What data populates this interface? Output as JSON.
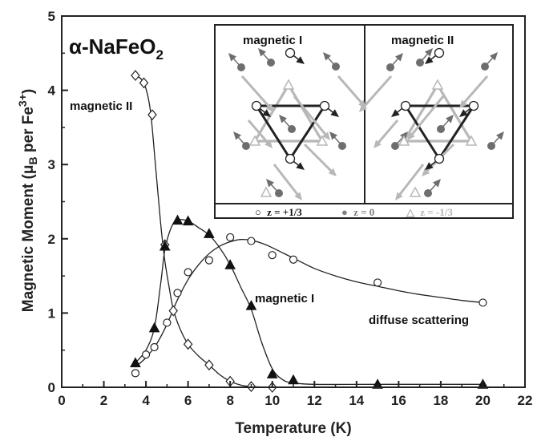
{
  "chart_data": {
    "type": "scatter",
    "title_parts": {
      "prefix": "α-NaFeO",
      "subscript": "2"
    },
    "xlabel": "Temperature (K)",
    "ylabel_parts": {
      "main": "Magnetic Moment (μ",
      "sub": "B",
      "mid": " per Fe",
      "sup": "3+",
      "end": ")"
    },
    "xlim": [
      0,
      22
    ],
    "ylim": [
      0,
      5
    ],
    "x_ticks": [
      "0",
      "2",
      "4",
      "6",
      "8",
      "10",
      "12",
      "14",
      "16",
      "18",
      "20",
      "22"
    ],
    "y_ticks": [
      "0",
      "1",
      "2",
      "3",
      "4",
      "5"
    ],
    "grid": false,
    "series": [
      {
        "name": "magnetic II",
        "marker": "diamond",
        "x": [
          3.5,
          3.9,
          4.3,
          4.9,
          5.3,
          6.0,
          7.0,
          8.0,
          9.0,
          10.0
        ],
        "y": [
          4.2,
          4.1,
          3.67,
          1.92,
          1.03,
          0.58,
          0.3,
          0.08,
          0.01,
          0.0
        ],
        "curve": [
          [
            3.5,
            4.2
          ],
          [
            3.9,
            4.1
          ],
          [
            4.2,
            3.75
          ],
          [
            4.45,
            3.0
          ],
          [
            4.7,
            2.2
          ],
          [
            4.9,
            1.7
          ],
          [
            5.1,
            1.35
          ],
          [
            5.3,
            1.05
          ],
          [
            5.6,
            0.8
          ],
          [
            6.0,
            0.58
          ],
          [
            6.5,
            0.42
          ],
          [
            7.0,
            0.3
          ],
          [
            7.5,
            0.17
          ],
          [
            8.0,
            0.08
          ],
          [
            8.5,
            0.03
          ],
          [
            9.0,
            0.01
          ],
          [
            10.0,
            0.0
          ]
        ]
      },
      {
        "name": "magnetic I",
        "marker": "triangle",
        "x": [
          3.5,
          4.4,
          4.9,
          5.5,
          6.0,
          7.0,
          8.0,
          9.0,
          10.0,
          11.0,
          15.0,
          20.0
        ],
        "y": [
          0.33,
          0.8,
          1.9,
          2.25,
          2.24,
          2.07,
          1.65,
          1.1,
          0.18,
          0.1,
          0.04,
          0.04
        ],
        "curve": [
          [
            3.5,
            0.33
          ],
          [
            4.0,
            0.5
          ],
          [
            4.4,
            0.8
          ],
          [
            4.7,
            1.4
          ],
          [
            4.9,
            1.85
          ],
          [
            5.2,
            2.15
          ],
          [
            5.5,
            2.25
          ],
          [
            6.0,
            2.24
          ],
          [
            6.5,
            2.15
          ],
          [
            7.0,
            2.05
          ],
          [
            7.5,
            1.88
          ],
          [
            8.0,
            1.65
          ],
          [
            8.5,
            1.35
          ],
          [
            9.0,
            1.05
          ],
          [
            9.5,
            0.6
          ],
          [
            10.0,
            0.25
          ],
          [
            10.5,
            0.1
          ],
          [
            11.0,
            0.06
          ],
          [
            12.0,
            0.04
          ],
          [
            15.0,
            0.04
          ],
          [
            20.0,
            0.04
          ]
        ]
      },
      {
        "name": "diffuse scattering",
        "marker": "circle",
        "x": [
          3.5,
          4.0,
          4.4,
          5.0,
          5.5,
          6.0,
          7.0,
          8.0,
          9.0,
          10.0,
          11.0,
          15.0,
          20.0
        ],
        "y": [
          0.19,
          0.44,
          0.54,
          0.87,
          1.27,
          1.55,
          1.71,
          2.02,
          1.97,
          1.78,
          1.72,
          1.41,
          1.14
        ],
        "curve": [
          [
            3.5,
            0.27
          ],
          [
            4.0,
            0.4
          ],
          [
            4.5,
            0.58
          ],
          [
            5.0,
            0.85
          ],
          [
            5.5,
            1.18
          ],
          [
            6.0,
            1.45
          ],
          [
            6.5,
            1.65
          ],
          [
            7.0,
            1.8
          ],
          [
            7.5,
            1.9
          ],
          [
            8.0,
            1.96
          ],
          [
            8.5,
            1.99
          ],
          [
            9.0,
            1.98
          ],
          [
            9.5,
            1.94
          ],
          [
            10.0,
            1.88
          ],
          [
            11.0,
            1.74
          ],
          [
            12.0,
            1.6
          ],
          [
            13.0,
            1.5
          ],
          [
            14.0,
            1.42
          ],
          [
            15.0,
            1.36
          ],
          [
            16.0,
            1.3
          ],
          [
            17.0,
            1.25
          ],
          [
            18.0,
            1.21
          ],
          [
            19.0,
            1.17
          ],
          [
            20.0,
            1.14
          ]
        ]
      }
    ],
    "annotations": {
      "magnetic_II": "magnetic II",
      "magnetic_I": "magnetic I",
      "diffuse": "diffuse scattering"
    },
    "inset": {
      "panel_left_title": "magnetic I",
      "panel_right_title": "magnetic II",
      "legend": [
        {
          "symbol": "○",
          "label": "z = +1/3",
          "color": "#111111"
        },
        {
          "symbol": "●",
          "label": "z = 0",
          "color": "#808080"
        },
        {
          "symbol": "△",
          "label": "z = -1/3",
          "color": "#b5b5b5"
        }
      ]
    }
  }
}
